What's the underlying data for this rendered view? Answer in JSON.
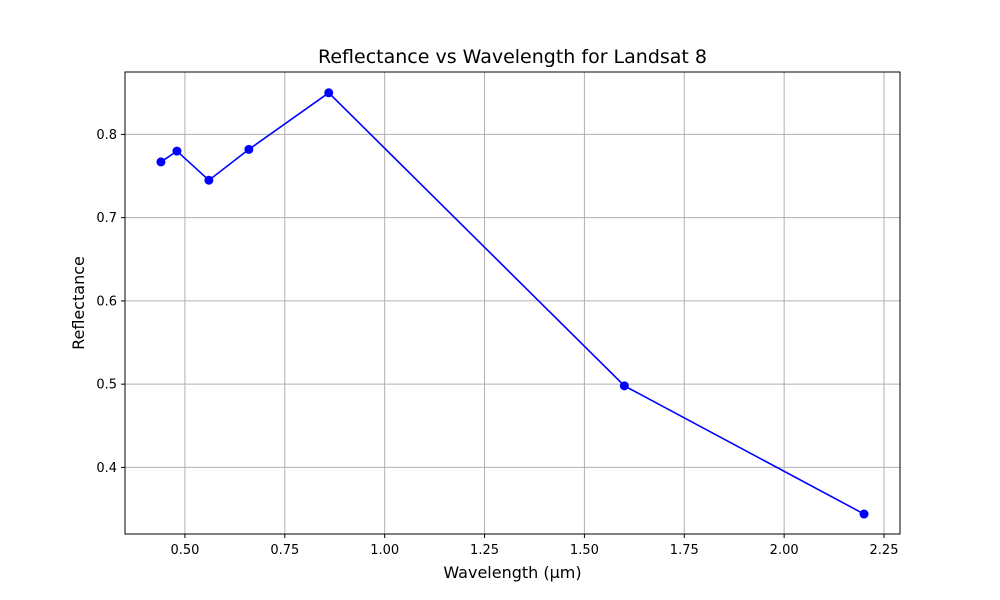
{
  "chart_data": {
    "type": "line",
    "title": "Reflectance vs Wavelength for Landsat 8",
    "xlabel": "Wavelength (μm)",
    "ylabel": "Reflectance",
    "xlim": [
      0.35,
      2.29
    ],
    "ylim": [
      0.32,
      0.875
    ],
    "x_ticks": [
      0.5,
      0.75,
      1.0,
      1.25,
      1.5,
      1.75,
      2.0,
      2.25
    ],
    "x_tick_labels": [
      "0.50",
      "0.75",
      "1.00",
      "1.25",
      "1.50",
      "1.75",
      "2.00",
      "2.25"
    ],
    "y_ticks": [
      0.4,
      0.5,
      0.6,
      0.7,
      0.8
    ],
    "y_tick_labels": [
      "0.4",
      "0.5",
      "0.6",
      "0.7",
      "0.8"
    ],
    "grid": true,
    "series": [
      {
        "color": "#0000ff",
        "marker": "circle",
        "x": [
          0.44,
          0.48,
          0.56,
          0.66,
          0.86,
          1.6,
          2.2
        ],
        "y": [
          0.767,
          0.78,
          0.745,
          0.782,
          0.85,
          0.498,
          0.344
        ]
      }
    ]
  }
}
